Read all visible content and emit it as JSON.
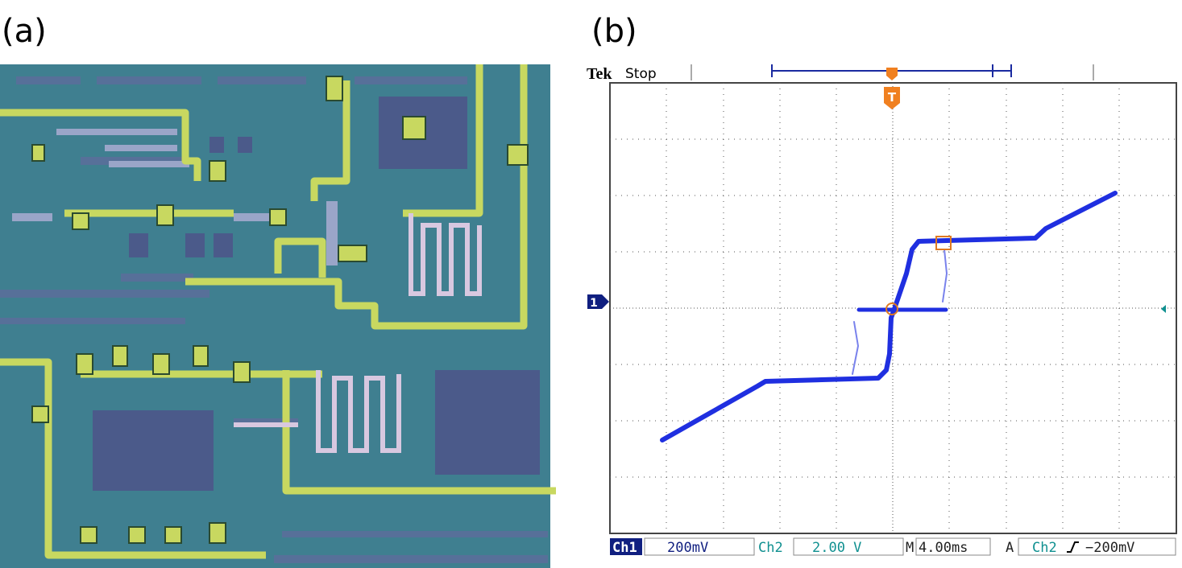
{
  "panels": {
    "a": {
      "label": "(a)"
    },
    "b": {
      "label": "(b)",
      "brand": "Tek",
      "status": "Stop",
      "channel_marker": "1",
      "trigger_marker": "T",
      "readouts": {
        "ch1_label": "Ch1",
        "ch1_scale": "200mV",
        "ch2_label": "Ch2",
        "ch2_scale": "2.00 V",
        "timebase_label": "M",
        "timebase": "4.00ms",
        "trigger_label": "A",
        "trigger_source": "Ch2",
        "trigger_level": "−200mV"
      }
    }
  }
}
